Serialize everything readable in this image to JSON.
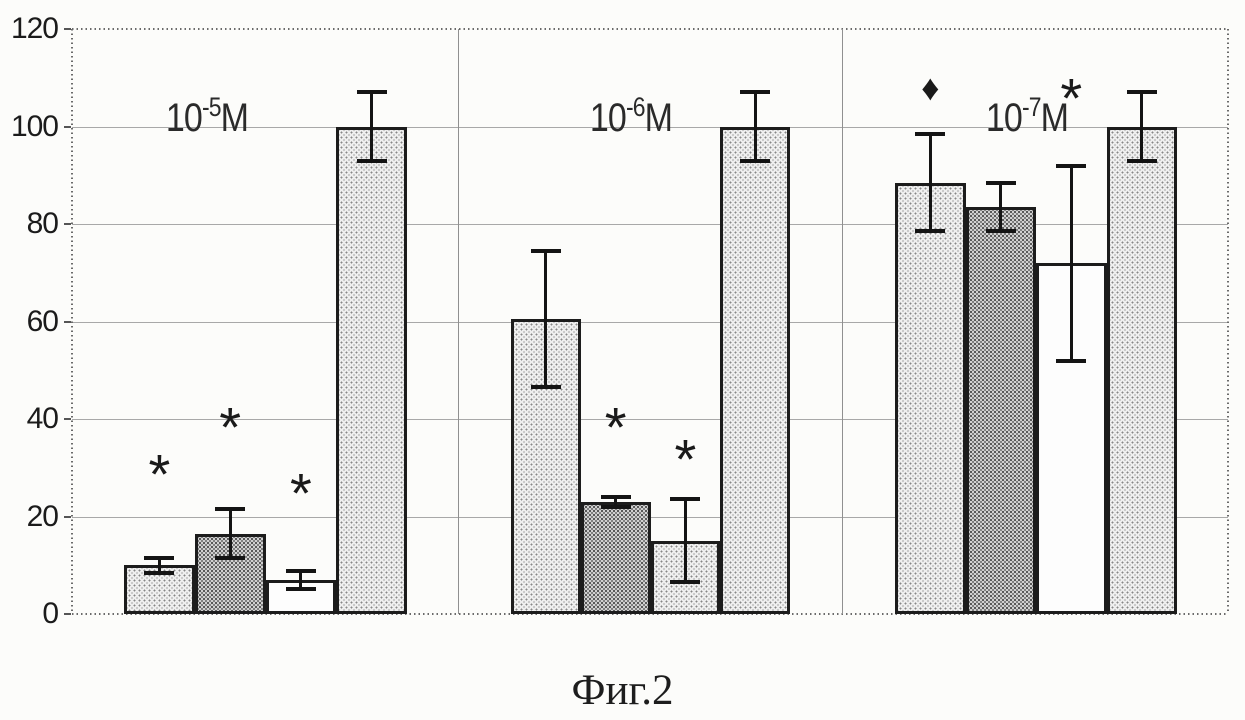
{
  "figure": {
    "caption": "Фиг.2"
  },
  "colors": {
    "background": "#fcfcfa",
    "bar_fill_light_stipple": "#efefef",
    "bar_fill_dense_stipple": "#d0d0d0",
    "bar_fill_white": "#fdfdfd",
    "bar_outline": "#1c1c1c",
    "gridline": "#a8a8a8",
    "axis_dotted_border": "#6a6a6a",
    "error_bar": "#141414",
    "text": "#1b1b1b"
  },
  "chart_data": {
    "type": "bar",
    "title": "",
    "xlabel": "",
    "ylabel": "",
    "ylim": [
      0,
      120
    ],
    "yticks": [
      0,
      20,
      40,
      60,
      80,
      100,
      120
    ],
    "grid": "horizontal",
    "legend_position": "none",
    "error_bars": true,
    "groups": [
      {
        "label": {
          "base": "10",
          "exponent": "-5",
          "suffix": "M"
        },
        "bars": [
          {
            "value": 10,
            "error": 1.5,
            "fill": "light"
          },
          {
            "value": 16.5,
            "error": 5,
            "fill": "medium"
          },
          {
            "value": 7,
            "error": 1.8,
            "fill": "white"
          },
          {
            "value": 100,
            "error": 7,
            "fill": "light"
          }
        ],
        "markers": [
          {
            "symbol": "*",
            "bar_index": 0,
            "y": 30
          },
          {
            "symbol": "*",
            "bar_index": 1,
            "y": 39.5
          },
          {
            "symbol": "*",
            "bar_index": 2,
            "y": 26
          }
        ]
      },
      {
        "label": {
          "base": "10",
          "exponent": "-6",
          "suffix": "M"
        },
        "bars": [
          {
            "value": 60.5,
            "error": 14,
            "fill": "light"
          },
          {
            "value": 23,
            "error": 1,
            "fill": "medium"
          },
          {
            "value": 15,
            "error": 8.5,
            "fill": "light"
          },
          {
            "value": 100,
            "error": 7,
            "fill": "light"
          }
        ],
        "markers": [
          {
            "symbol": "*",
            "bar_index": 1,
            "y": 39.5
          },
          {
            "symbol": "*",
            "bar_index": 2,
            "y": 33
          }
        ]
      },
      {
        "label": {
          "base": "10",
          "exponent": "-7",
          "suffix": "M"
        },
        "bars": [
          {
            "value": 88.5,
            "error": 10,
            "fill": "light"
          },
          {
            "value": 83.5,
            "error": 5,
            "fill": "medium"
          },
          {
            "value": 72,
            "error": 20,
            "fill": "white"
          },
          {
            "value": 100,
            "error": 7,
            "fill": "light"
          }
        ],
        "markers": [
          {
            "symbol": "♦",
            "bar_index": 0,
            "y": 108
          },
          {
            "symbol": "*",
            "bar_index": 2,
            "y": 107
          }
        ]
      }
    ]
  }
}
